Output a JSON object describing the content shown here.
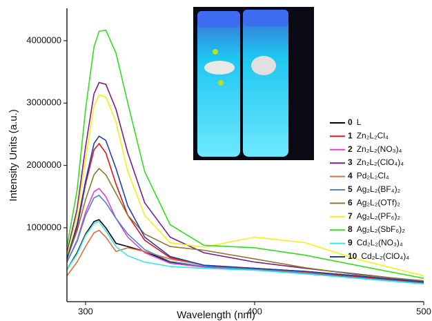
{
  "chart_data": {
    "type": "line",
    "xlabel": "Wavelength (nm)",
    "ylabel": "Intensity Units (a.u.)",
    "x": [
      289,
      295,
      300,
      305,
      308,
      312,
      318,
      325,
      335,
      350,
      370,
      400,
      430,
      460,
      500
    ],
    "xlim": [
      289,
      500
    ],
    "xticks": [
      300,
      400,
      500
    ],
    "ylim": [
      -185000,
      4520000
    ],
    "yticks": [
      1000000,
      2000000,
      3000000,
      4000000
    ],
    "grid": false,
    "legend": "right",
    "series": [
      {
        "number": "0",
        "name": "L",
        "color": "#000000",
        "values": [
          330000,
          600000,
          900000,
          1100000,
          1130000,
          1000000,
          750000,
          700000,
          620000,
          450000,
          380000,
          350000,
          300000,
          230000,
          130000
        ]
      },
      {
        "number": "1",
        "name": "Zn₂L₂Cl₄",
        "color": "#e8101a",
        "values": [
          500000,
          1000000,
          1700000,
          2250000,
          2350000,
          2200000,
          1700000,
          1200000,
          800000,
          520000,
          400000,
          350000,
          290000,
          220000,
          120000
        ]
      },
      {
        "number": "2",
        "name": "Zn₂L₂(NO₃)₄",
        "color": "#e23ee0",
        "values": [
          450000,
          800000,
          1250000,
          1580000,
          1630000,
          1500000,
          1150000,
          850000,
          600000,
          430000,
          370000,
          330000,
          280000,
          200000,
          110000
        ]
      },
      {
        "number": "3",
        "name": "Zn₂L₂(ClO₄)₄",
        "color": "#7b1a8a",
        "values": [
          600000,
          1300000,
          2300000,
          3150000,
          3330000,
          3300000,
          2900000,
          2200000,
          1400000,
          850000,
          600000,
          450000,
          350000,
          260000,
          140000
        ]
      },
      {
        "number": "4",
        "name": "Pd₂L₂Cl₄",
        "color": "#e07030",
        "values": [
          230000,
          450000,
          700000,
          920000,
          960000,
          850000,
          620000,
          680000,
          620000,
          500000,
          400000,
          340000,
          280000,
          200000,
          110000
        ]
      },
      {
        "number": "5",
        "name": "Ag₂L₂(BF₄)₂",
        "color": "#4a86c0",
        "values": [
          450000,
          780000,
          1200000,
          1480000,
          1520000,
          1400000,
          1150000,
          900000,
          650000,
          460000,
          380000,
          330000,
          270000,
          200000,
          110000
        ]
      },
      {
        "number": "6",
        "name": "Ag₂L₂(OTf)₂",
        "color": "#8a7a2a",
        "values": [
          500000,
          950000,
          1450000,
          1850000,
          1950000,
          1850000,
          1550000,
          1200000,
          900000,
          700000,
          640000,
          500000,
          360000,
          250000,
          150000
        ]
      },
      {
        "number": "7",
        "name": "Ag₂L₂(PF₆)₂",
        "color": "#f5f012",
        "values": [
          550000,
          1200000,
          2100000,
          2950000,
          3130000,
          3100000,
          2700000,
          1900000,
          1200000,
          760000,
          690000,
          850000,
          760000,
          500000,
          230000
        ]
      },
      {
        "number": "8",
        "name": "Ag₂L₂(SbF₆)₂",
        "color": "#2ee01a",
        "values": [
          700000,
          1600000,
          2900000,
          3900000,
          4150000,
          4170000,
          3800000,
          3000000,
          1900000,
          1050000,
          720000,
          680000,
          560000,
          400000,
          190000
        ]
      },
      {
        "number": "9",
        "name": "Cd₂L₂(NO₃)₄",
        "color": "#30e8ea",
        "values": [
          330000,
          580000,
          880000,
          1070000,
          1100000,
          950000,
          700000,
          550000,
          450000,
          380000,
          350000,
          320000,
          260000,
          190000,
          100000
        ]
      },
      {
        "number": "10",
        "name": "Cd₂L₂(ClO₄)₄",
        "color": "#1f3fb0",
        "values": [
          500000,
          1050000,
          1750000,
          2350000,
          2470000,
          2400000,
          1950000,
          1350000,
          850000,
          540000,
          400000,
          350000,
          300000,
          230000,
          130000
        ]
      }
    ]
  }
}
